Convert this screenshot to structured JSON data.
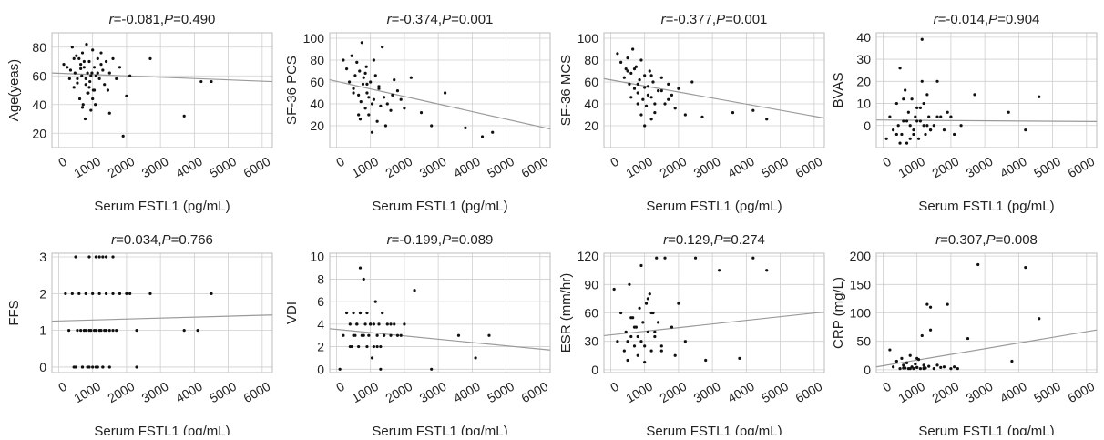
{
  "figure": {
    "x_axis_label": "Serum FSTL1 (pg/mL)",
    "x_ticks": [
      "0",
      "1000",
      "2000",
      "3000",
      "4000",
      "5000",
      "6000"
    ],
    "colors": {
      "point": "#111111",
      "fit_line": "#9a9a9a",
      "grid": "#cfcfcf",
      "frame": "#bdbdbd"
    }
  },
  "chart_data": [
    {
      "type": "scatter",
      "title_r": "-0.081",
      "title_p": "0.490",
      "ylabel": "Age(yeas)",
      "xlim": [
        -200,
        6300
      ],
      "ylim": [
        10,
        90
      ],
      "yticks": [
        20,
        40,
        60,
        80
      ],
      "ytick_labels": [
        "20",
        "40",
        "60",
        "80"
      ],
      "fit": [
        [
          -200,
          62
        ],
        [
          6300,
          56
        ]
      ],
      "x": [
        150,
        250,
        320,
        400,
        450,
        480,
        520,
        550,
        600,
        620,
        650,
        680,
        700,
        720,
        750,
        780,
        800,
        820,
        850,
        870,
        900,
        920,
        950,
        980,
        1000,
        1020,
        1050,
        1080,
        1100,
        1150,
        1200,
        1250,
        1300,
        1350,
        1400,
        1450,
        1500,
        1600,
        1700,
        1800,
        1900,
        2000,
        2100,
        2700,
        3700,
        4200,
        4500,
        550,
        650,
        750,
        850,
        950,
        1050,
        1150,
        1250,
        450,
        350,
        900,
        1000,
        700,
        800,
        1500
      ],
      "y": [
        68,
        66,
        58,
        80,
        52,
        62,
        74,
        58,
        72,
        44,
        68,
        60,
        76,
        40,
        66,
        30,
        54,
        82,
        62,
        48,
        70,
        56,
        36,
        62,
        78,
        50,
        66,
        40,
        60,
        72,
        58,
        76,
        64,
        54,
        70,
        50,
        62,
        72,
        58,
        66,
        18,
        46,
        60,
        72,
        32,
        56,
        56,
        55,
        65,
        70,
        48,
        60,
        50,
        62,
        68,
        72,
        64,
        52,
        44,
        38,
        58,
        34
      ]
    },
    {
      "type": "scatter",
      "title_r": "-0.374",
      "title_p": "0.001",
      "ylabel": "SF-36 PCS",
      "xlim": [
        -200,
        6300
      ],
      "ylim": [
        0,
        105
      ],
      "yticks": [
        20,
        40,
        60,
        80,
        100
      ],
      "ytick_labels": [
        "20",
        "40",
        "60",
        "80",
        "100"
      ],
      "fit": [
        [
          -200,
          62
        ],
        [
          6300,
          17
        ]
      ],
      "x": [
        200,
        300,
        380,
        450,
        500,
        550,
        600,
        650,
        680,
        720,
        750,
        780,
        800,
        850,
        880,
        900,
        950,
        1000,
        1050,
        1100,
        1150,
        1200,
        1250,
        1300,
        1350,
        1400,
        1500,
        1600,
        1700,
        1800,
        1900,
        2000,
        2200,
        2500,
        2800,
        3200,
        3800,
        4300,
        4600,
        500,
        650,
        850,
        950,
        1050,
        1250,
        1450,
        1650,
        700,
        900,
        1100
      ],
      "y": [
        80,
        72,
        60,
        84,
        54,
        66,
        78,
        48,
        70,
        42,
        96,
        58,
        64,
        36,
        74,
        50,
        30,
        60,
        14,
        44,
        66,
        24,
        54,
        38,
        92,
        46,
        40,
        34,
        62,
        52,
        44,
        36,
        64,
        32,
        20,
        50,
        18,
        10,
        14,
        50,
        30,
        68,
        46,
        40,
        56,
        20,
        48,
        26,
        58,
        80
      ]
    },
    {
      "type": "scatter",
      "title_r": "-0.377",
      "title_p": "0.001",
      "ylabel": "SF-36 MCS",
      "xlim": [
        -200,
        6300
      ],
      "ylim": [
        0,
        105
      ],
      "yticks": [
        20,
        40,
        60,
        80,
        100
      ],
      "ytick_labels": [
        "20",
        "40",
        "60",
        "80",
        "100"
      ],
      "fit": [
        [
          -200,
          63
        ],
        [
          6300,
          27
        ]
      ],
      "x": [
        200,
        300,
        400,
        450,
        500,
        550,
        600,
        650,
        700,
        750,
        800,
        850,
        900,
        950,
        1000,
        1050,
        1100,
        1150,
        1200,
        1250,
        1300,
        1400,
        1500,
        1600,
        1700,
        1800,
        1900,
        2000,
        2200,
        2400,
        2700,
        3600,
        4200,
        4600,
        600,
        700,
        800,
        900,
        1000,
        1100,
        1200,
        1300,
        1500,
        1700,
        500,
        800,
        1000,
        1200
      ],
      "y": [
        86,
        78,
        64,
        72,
        82,
        58,
        68,
        90,
        54,
        74,
        50,
        62,
        80,
        44,
        66,
        38,
        56,
        70,
        46,
        60,
        32,
        52,
        64,
        40,
        58,
        48,
        36,
        54,
        30,
        60,
        28,
        32,
        34,
        26,
        46,
        72,
        58,
        30,
        20,
        48,
        66,
        40,
        52,
        44,
        70,
        40,
        55,
        26
      ]
    },
    {
      "type": "scatter",
      "title_r": "-0.014",
      "title_p": "0.904",
      "ylabel": "BVAS",
      "xlim": [
        -200,
        6300
      ],
      "ylim": [
        -10,
        42
      ],
      "yticks": [
        0,
        10,
        20,
        30,
        40
      ],
      "ytick_labels": [
        "0",
        "10",
        "20",
        "30",
        "40"
      ],
      "fit": [
        [
          -200,
          2.5
        ],
        [
          6300,
          1.8
        ]
      ],
      "x": [
        100,
        200,
        300,
        400,
        450,
        500,
        550,
        600,
        650,
        700,
        750,
        800,
        850,
        900,
        950,
        1000,
        1050,
        1100,
        1150,
        1200,
        1250,
        1300,
        1350,
        1400,
        1500,
        1600,
        1700,
        1800,
        1900,
        2000,
        2100,
        2300,
        2700,
        3700,
        4200,
        4600,
        500,
        700,
        900,
        1100,
        1300,
        400,
        600,
        800,
        1000,
        1200,
        1400,
        1600,
        1150
      ],
      "y": [
        -6,
        4,
        -2,
        10,
        0,
        26,
        -4,
        2,
        16,
        -8,
        6,
        0,
        12,
        -2,
        4,
        8,
        -6,
        2,
        20,
        0,
        -4,
        14,
        4,
        -2,
        0,
        20,
        4,
        -2,
        6,
        4,
        -4,
        0,
        14,
        6,
        -2,
        13,
        -8,
        2,
        -4,
        8,
        0,
        -4,
        12,
        -6,
        2,
        10,
        -2,
        4,
        39
      ]
    },
    {
      "type": "scatter",
      "title_r": "0.034",
      "title_p": "0.766",
      "ylabel": "FFS",
      "xlim": [
        -200,
        6300
      ],
      "ylim": [
        -0.15,
        3.1
      ],
      "yticks": [
        0,
        1,
        2,
        3
      ],
      "ytick_labels": [
        "0",
        "1",
        "2",
        "3"
      ],
      "fit": [
        [
          -200,
          1.25
        ],
        [
          6300,
          1.42
        ]
      ],
      "x": [
        300,
        450,
        550,
        650,
        700,
        750,
        800,
        850,
        900,
        950,
        1000,
        1050,
        1100,
        1150,
        1200,
        1250,
        1300,
        1350,
        1400,
        1500,
        1600,
        2300,
        200,
        400,
        600,
        800,
        1000,
        1200,
        1400,
        1600,
        1800,
        2000,
        2100,
        2700,
        4500,
        500,
        700,
        900,
        1100,
        1300,
        1500,
        1700,
        2300,
        3700,
        4100,
        500,
        900,
        1100,
        1200,
        1300,
        1400,
        1600
      ],
      "y": [
        1,
        0,
        1,
        1,
        0,
        1,
        1,
        0,
        1,
        1,
        0,
        1,
        1,
        0,
        1,
        1,
        0,
        1,
        1,
        0,
        1,
        1,
        2,
        2,
        2,
        2,
        2,
        2,
        2,
        2,
        2,
        2,
        2,
        2,
        2,
        0,
        0,
        0,
        0,
        0,
        1,
        1,
        0,
        1,
        1,
        3,
        3,
        3,
        3,
        3,
        3,
        3
      ]
    },
    {
      "type": "scatter",
      "title_r": "-0.199",
      "title_p": "0.089",
      "ylabel": "VDI",
      "xlim": [
        -200,
        6300
      ],
      "ylim": [
        -0.3,
        10.3
      ],
      "yticks": [
        0,
        2,
        4,
        6,
        8,
        10
      ],
      "ytick_labels": [
        "0",
        "2",
        "4",
        "6",
        "8",
        "10"
      ],
      "fit": [
        [
          -200,
          3.6
        ],
        [
          6300,
          1.7
        ]
      ],
      "x": [
        100,
        200,
        300,
        400,
        450,
        500,
        550,
        600,
        650,
        700,
        750,
        800,
        850,
        900,
        950,
        1000,
        1050,
        1100,
        1150,
        1200,
        1250,
        1300,
        1350,
        1400,
        1500,
        1600,
        1700,
        1800,
        1900,
        2000,
        2300,
        2800,
        3600,
        4100,
        4500,
        400,
        600,
        800,
        1000,
        1200,
        1400,
        1600,
        500,
        700,
        900,
        1100,
        1300,
        700
      ],
      "y": [
        0,
        3,
        5,
        4,
        2,
        5,
        3,
        4,
        2,
        5,
        3,
        8,
        4,
        2,
        3,
        4,
        1,
        2,
        6,
        3,
        4,
        0,
        5,
        3,
        4,
        3,
        4,
        3,
        3,
        4,
        7,
        0,
        3,
        1,
        3,
        2,
        4,
        3,
        4,
        2,
        3,
        4,
        3,
        9,
        5,
        4,
        2,
        5
      ]
    },
    {
      "type": "scatter",
      "title_r": "0.129",
      "title_p": "0.274",
      "ylabel": "ESR (mm/hr)",
      "xlim": [
        -200,
        6300
      ],
      "ylim": [
        -3,
        123
      ],
      "yticks": [
        0,
        30,
        60,
        90,
        120
      ],
      "ytick_labels": [
        "0",
        "30",
        "60",
        "90",
        "120"
      ],
      "fit": [
        [
          -200,
          36
        ],
        [
          6300,
          61
        ]
      ],
      "x": [
        100,
        200,
        300,
        400,
        450,
        500,
        550,
        600,
        650,
        700,
        750,
        800,
        850,
        900,
        950,
        1000,
        1050,
        1100,
        1150,
        1200,
        1250,
        1300,
        1350,
        1400,
        1500,
        1600,
        1800,
        1900,
        2000,
        2200,
        2500,
        2800,
        3200,
        3800,
        4200,
        4600,
        500,
        700,
        900,
        1100,
        1300,
        1500,
        600,
        800,
        1000,
        1200
      ],
      "y": [
        85,
        30,
        60,
        20,
        40,
        10,
        90,
        35,
        55,
        25,
        45,
        15,
        65,
        30,
        50,
        8,
        70,
        40,
        80,
        20,
        60,
        35,
        118,
        50,
        25,
        118,
        45,
        15,
        70,
        30,
        118,
        10,
        105,
        12,
        118,
        105,
        30,
        45,
        110,
        75,
        40,
        20,
        55,
        35,
        25,
        60
      ]
    },
    {
      "type": "scatter",
      "title_r": "0.307",
      "title_p": "0.008",
      "ylabel": "CRP (mg/L)",
      "xlim": [
        -200,
        6300
      ],
      "ylim": [
        -5,
        205
      ],
      "yticks": [
        0,
        50,
        100,
        150,
        200
      ],
      "ytick_labels": [
        "0",
        "50",
        "100",
        "150",
        "200"
      ],
      "fit": [
        [
          -200,
          5
        ],
        [
          6300,
          70
        ]
      ],
      "x": [
        200,
        300,
        400,
        500,
        550,
        600,
        650,
        700,
        750,
        800,
        850,
        900,
        950,
        1000,
        1050,
        1100,
        1150,
        1200,
        1250,
        1300,
        1350,
        1400,
        1500,
        1600,
        1700,
        1800,
        1900,
        2000,
        2100,
        2200,
        2500,
        2800,
        3800,
        4200,
        4600,
        600,
        800,
        1000,
        1200,
        1400,
        1000,
        1200
      ],
      "y": [
        35,
        5,
        15,
        2,
        20,
        8,
        3,
        12,
        2,
        25,
        5,
        2,
        10,
        4,
        18,
        2,
        60,
        8,
        3,
        115,
        6,
        110,
        2,
        8,
        4,
        5,
        115,
        2,
        5,
        2,
        55,
        185,
        15,
        180,
        90,
        3,
        2,
        4,
        2,
        70,
        20,
        3
      ]
    }
  ]
}
